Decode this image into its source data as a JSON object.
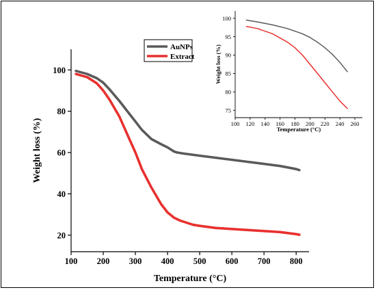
{
  "chart_data": [
    {
      "type": "line",
      "title": "",
      "xlabel": "Temperature (°C)",
      "ylabel": "Weight loss (%)",
      "xlim": [
        100,
        840
      ],
      "ylim": [
        12,
        110
      ],
      "xticks": [
        100,
        200,
        300,
        400,
        500,
        600,
        700,
        800
      ],
      "yticks": [
        20,
        40,
        60,
        80,
        100
      ],
      "grid": false,
      "legend_position": "top-center",
      "series": [
        {
          "name": "AuNPs",
          "color": "#5a5a5a",
          "x": [
            115,
            150,
            180,
            200,
            220,
            250,
            280,
            300,
            320,
            350,
            380,
            400,
            410,
            420,
            430,
            450,
            500,
            550,
            600,
            650,
            700,
            750,
            800,
            810
          ],
          "y": [
            99.5,
            98,
            96,
            93.8,
            90.5,
            85,
            79,
            75,
            71,
            66.5,
            64,
            62.5,
            61.5,
            60.5,
            60,
            59.5,
            58.5,
            57.5,
            56.5,
            55.5,
            54.5,
            53.5,
            52,
            51.5
          ]
        },
        {
          "name": "Extract",
          "color": "#e8302e",
          "x": [
            115,
            150,
            180,
            200,
            220,
            250,
            280,
            300,
            320,
            350,
            380,
            400,
            420,
            440,
            460,
            480,
            500,
            550,
            600,
            650,
            700,
            750,
            800,
            810
          ],
          "y": [
            98,
            96.5,
            93.5,
            90,
            85.5,
            77.5,
            67,
            60,
            52,
            43,
            35,
            31,
            28.5,
            27,
            26,
            25,
            24.5,
            23.5,
            23,
            22.5,
            22,
            21.5,
            20.5,
            20.2
          ]
        }
      ]
    },
    {
      "type": "line",
      "title": "",
      "xlabel": "Temperature (°C)",
      "ylabel": "Weight loss (%)",
      "xlim": [
        100,
        270
      ],
      "ylim": [
        73,
        102
      ],
      "xticks": [
        100,
        120,
        140,
        160,
        180,
        200,
        220,
        240,
        260
      ],
      "yticks": [
        75,
        80,
        85,
        90,
        95,
        100
      ],
      "grid": false,
      "series": [
        {
          "name": "AuNPs",
          "color": "#5a5a5a",
          "x": [
            115,
            130,
            150,
            170,
            190,
            200,
            210,
            220,
            230,
            240,
            250
          ],
          "y": [
            99.5,
            99,
            98.2,
            97.2,
            95.8,
            94.8,
            93.5,
            92,
            90.2,
            88,
            85.5
          ]
        },
        {
          "name": "Extract",
          "color": "#e8302e",
          "x": [
            115,
            130,
            150,
            170,
            180,
            190,
            200,
            210,
            220,
            230,
            240,
            250
          ],
          "y": [
            97.8,
            97.2,
            95.8,
            93.5,
            92,
            90,
            87.5,
            85,
            82.5,
            80,
            77.5,
            75.5
          ]
        }
      ]
    }
  ]
}
